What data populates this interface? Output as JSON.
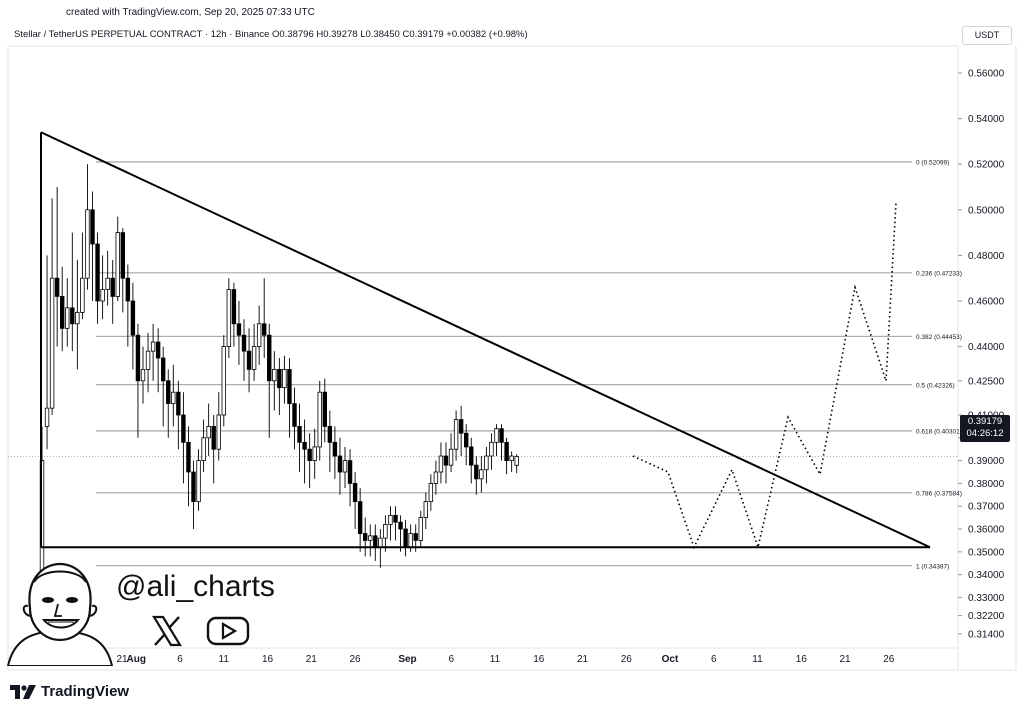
{
  "header": {
    "created": "created with TradingView.com, Sep 20, 2025 07:33 UTC",
    "legend": "Stellar / TetherUS PERPETUAL CONTRACT · 12h · Binance  O0.38796  H0.39278  L0.38450  C0.39179  +0.00382 (+0.98%)"
  },
  "currency": "USDT",
  "price_badge": {
    "price": "0.39179",
    "countdown": "04:26:12"
  },
  "brand": {
    "name": "TradingView",
    "logo": "tradingview-logo-icon"
  },
  "author": {
    "handle": "@ali_charts",
    "icons": [
      "x-icon",
      "youtube-icon"
    ]
  },
  "chart_data": {
    "type": "candlestick",
    "symbol": "XLMUSDT.P",
    "interval": "12h",
    "ylim": [
      0.314,
      0.566
    ],
    "yticks": [
      "0.56000",
      "0.54000",
      "0.52000",
      "0.50000",
      "0.48000",
      "0.46000",
      "0.44000",
      "0.42500",
      "0.41000",
      "0.40000",
      "0.39000",
      "0.38000",
      "0.37000",
      "0.36000",
      "0.35000",
      "0.34000",
      "0.33000",
      "0.32200",
      "0.31400"
    ],
    "ytick_values": [
      0.56,
      0.54,
      0.52,
      0.5,
      0.48,
      0.46,
      0.44,
      0.425,
      0.41,
      0.4,
      0.39,
      0.38,
      0.37,
      0.36,
      0.35,
      0.34,
      0.33,
      0.322,
      0.314
    ],
    "xticks": [
      {
        "label": "21",
        "day": 0
      },
      {
        "label": "16",
        "day": -5
      },
      {
        "label": "21",
        "day": 0
      },
      {
        "label": "26",
        "day": 5
      },
      {
        "label": "Aug",
        "day": 11,
        "bold": true
      },
      {
        "label": "6",
        "day": 16
      },
      {
        "label": "11",
        "day": 21
      },
      {
        "label": "16",
        "day": 26
      },
      {
        "label": "21",
        "day": 31
      },
      {
        "label": "26",
        "day": 36
      },
      {
        "label": "Sep",
        "day": 42,
        "bold": true
      },
      {
        "label": "6",
        "day": 47
      },
      {
        "label": "11",
        "day": 52
      },
      {
        "label": "16",
        "day": 57
      },
      {
        "label": "21",
        "day": 62
      },
      {
        "label": "26",
        "day": 67
      },
      {
        "label": "Oct",
        "day": 72,
        "bold": true
      },
      {
        "label": "6",
        "day": 77
      },
      {
        "label": "11",
        "day": 82
      },
      {
        "label": "16",
        "day": 87
      },
      {
        "label": "21",
        "day": 92
      },
      {
        "label": "26",
        "day": 97
      }
    ],
    "fib_levels": [
      {
        "label": "0 (0.52099)",
        "value": 0.52099
      },
      {
        "label": "0.236 (0.47233)",
        "value": 0.47233
      },
      {
        "label": "0.382 (0.44453)",
        "value": 0.44453
      },
      {
        "label": "0.5 (0.42326)",
        "value": 0.42326
      },
      {
        "label": "0.618 (0.40301)",
        "value": 0.40301
      },
      {
        "label": "0.786 (0.37584)",
        "value": 0.37584
      },
      {
        "label": "1 (0.34387)",
        "value": 0.34387
      }
    ],
    "last_price": 0.39179,
    "triangle": [
      [
        10.2,
        0.534
      ],
      [
        10.2,
        0.352
      ],
      [
        108,
        0.352
      ]
    ],
    "projection": [
      [
        79,
        0.385
      ],
      [
        83,
        0.352
      ],
      [
        85.5,
        0.386
      ],
      [
        89,
        0.352
      ],
      [
        91.5,
        0.409
      ],
      [
        94.5,
        0.384
      ],
      [
        97,
        0.466
      ],
      [
        100.5,
        0.425
      ],
      [
        104,
        0.503
      ],
      [
        105,
        0.497
      ]
    ],
    "candles": [
      [
        0.33,
        0.39,
        0.3,
        0.405
      ],
      [
        0.405,
        0.413,
        0.395,
        0.48
      ],
      [
        0.413,
        0.47,
        0.41,
        0.505
      ],
      [
        0.47,
        0.462,
        0.44,
        0.51
      ],
      [
        0.462,
        0.448,
        0.438,
        0.475
      ],
      [
        0.448,
        0.457,
        0.44,
        0.47
      ],
      [
        0.457,
        0.45,
        0.438,
        0.49
      ],
      [
        0.45,
        0.455,
        0.43,
        0.478
      ],
      [
        0.455,
        0.47,
        0.452,
        0.49
      ],
      [
        0.47,
        0.5,
        0.465,
        0.52
      ],
      [
        0.5,
        0.485,
        0.46,
        0.508
      ],
      [
        0.485,
        0.46,
        0.45,
        0.49
      ],
      [
        0.46,
        0.465,
        0.452,
        0.48
      ],
      [
        0.465,
        0.47,
        0.458,
        0.482
      ],
      [
        0.47,
        0.462,
        0.45,
        0.478
      ],
      [
        0.462,
        0.49,
        0.46,
        0.497
      ],
      [
        0.49,
        0.47,
        0.455,
        0.492
      ],
      [
        0.47,
        0.46,
        0.44,
        0.476
      ],
      [
        0.46,
        0.445,
        0.43,
        0.468
      ],
      [
        0.445,
        0.425,
        0.4,
        0.45
      ],
      [
        0.425,
        0.43,
        0.415,
        0.44
      ],
      [
        0.43,
        0.438,
        0.42,
        0.446
      ],
      [
        0.438,
        0.442,
        0.425,
        0.45
      ],
      [
        0.442,
        0.435,
        0.42,
        0.448
      ],
      [
        0.435,
        0.425,
        0.405,
        0.44
      ],
      [
        0.425,
        0.415,
        0.4,
        0.43
      ],
      [
        0.415,
        0.42,
        0.405,
        0.432
      ],
      [
        0.42,
        0.41,
        0.395,
        0.425
      ],
      [
        0.41,
        0.398,
        0.38,
        0.42
      ],
      [
        0.398,
        0.385,
        0.37,
        0.405
      ],
      [
        0.385,
        0.372,
        0.36,
        0.39
      ],
      [
        0.372,
        0.39,
        0.368,
        0.395
      ],
      [
        0.39,
        0.4,
        0.385,
        0.408
      ],
      [
        0.4,
        0.405,
        0.392,
        0.415
      ],
      [
        0.405,
        0.395,
        0.38,
        0.41
      ],
      [
        0.395,
        0.41,
        0.39,
        0.42
      ],
      [
        0.41,
        0.44,
        0.405,
        0.445
      ],
      [
        0.44,
        0.465,
        0.435,
        0.47
      ],
      [
        0.465,
        0.45,
        0.44,
        0.468
      ],
      [
        0.45,
        0.445,
        0.432,
        0.46
      ],
      [
        0.445,
        0.438,
        0.425,
        0.452
      ],
      [
        0.438,
        0.43,
        0.42,
        0.448
      ],
      [
        0.43,
        0.44,
        0.425,
        0.45
      ],
      [
        0.44,
        0.45,
        0.432,
        0.458
      ],
      [
        0.45,
        0.445,
        0.435,
        0.47
      ],
      [
        0.445,
        0.425,
        0.4,
        0.45
      ],
      [
        0.425,
        0.43,
        0.412,
        0.438
      ],
      [
        0.43,
        0.422,
        0.41,
        0.435
      ],
      [
        0.422,
        0.43,
        0.415,
        0.436
      ],
      [
        0.43,
        0.415,
        0.4,
        0.435
      ],
      [
        0.415,
        0.405,
        0.395,
        0.422
      ],
      [
        0.405,
        0.398,
        0.385,
        0.415
      ],
      [
        0.398,
        0.395,
        0.38,
        0.408
      ],
      [
        0.395,
        0.39,
        0.378,
        0.402
      ],
      [
        0.39,
        0.396,
        0.382,
        0.404
      ],
      [
        0.396,
        0.42,
        0.39,
        0.425
      ],
      [
        0.42,
        0.405,
        0.398,
        0.426
      ],
      [
        0.405,
        0.398,
        0.385,
        0.412
      ],
      [
        0.398,
        0.392,
        0.382,
        0.405
      ],
      [
        0.392,
        0.385,
        0.375,
        0.4
      ],
      [
        0.385,
        0.39,
        0.378,
        0.396
      ],
      [
        0.39,
        0.38,
        0.37,
        0.395
      ],
      [
        0.38,
        0.372,
        0.36,
        0.385
      ],
      [
        0.372,
        0.358,
        0.35,
        0.378
      ],
      [
        0.358,
        0.355,
        0.348,
        0.365
      ],
      [
        0.355,
        0.357,
        0.348,
        0.362
      ],
      [
        0.357,
        0.352,
        0.346,
        0.362
      ],
      [
        0.352,
        0.356,
        0.343,
        0.36
      ],
      [
        0.356,
        0.362,
        0.35,
        0.366
      ],
      [
        0.362,
        0.366,
        0.355,
        0.37
      ],
      [
        0.366,
        0.363,
        0.355,
        0.37
      ],
      [
        0.363,
        0.36,
        0.35,
        0.366
      ],
      [
        0.36,
        0.352,
        0.348,
        0.364
      ],
      [
        0.352,
        0.358,
        0.35,
        0.362
      ],
      [
        0.358,
        0.355,
        0.35,
        0.362
      ],
      [
        0.355,
        0.365,
        0.352,
        0.368
      ],
      [
        0.365,
        0.372,
        0.36,
        0.376
      ],
      [
        0.372,
        0.38,
        0.368,
        0.384
      ],
      [
        0.38,
        0.385,
        0.375,
        0.39
      ],
      [
        0.385,
        0.392,
        0.38,
        0.398
      ],
      [
        0.392,
        0.388,
        0.38,
        0.398
      ],
      [
        0.388,
        0.395,
        0.385,
        0.402
      ],
      [
        0.395,
        0.408,
        0.39,
        0.412
      ],
      [
        0.408,
        0.402,
        0.392,
        0.414
      ],
      [
        0.402,
        0.396,
        0.388,
        0.406
      ],
      [
        0.396,
        0.388,
        0.38,
        0.4
      ],
      [
        0.388,
        0.382,
        0.375,
        0.392
      ],
      [
        0.382,
        0.386,
        0.376,
        0.392
      ],
      [
        0.386,
        0.392,
        0.38,
        0.396
      ],
      [
        0.392,
        0.398,
        0.386,
        0.402
      ],
      [
        0.398,
        0.404,
        0.392,
        0.406
      ],
      [
        0.404,
        0.398,
        0.39,
        0.406
      ],
      [
        0.398,
        0.39,
        0.384,
        0.4
      ],
      [
        0.39,
        0.392,
        0.385,
        0.394
      ],
      [
        0.38796,
        0.39179,
        0.3845,
        0.39278
      ]
    ]
  }
}
